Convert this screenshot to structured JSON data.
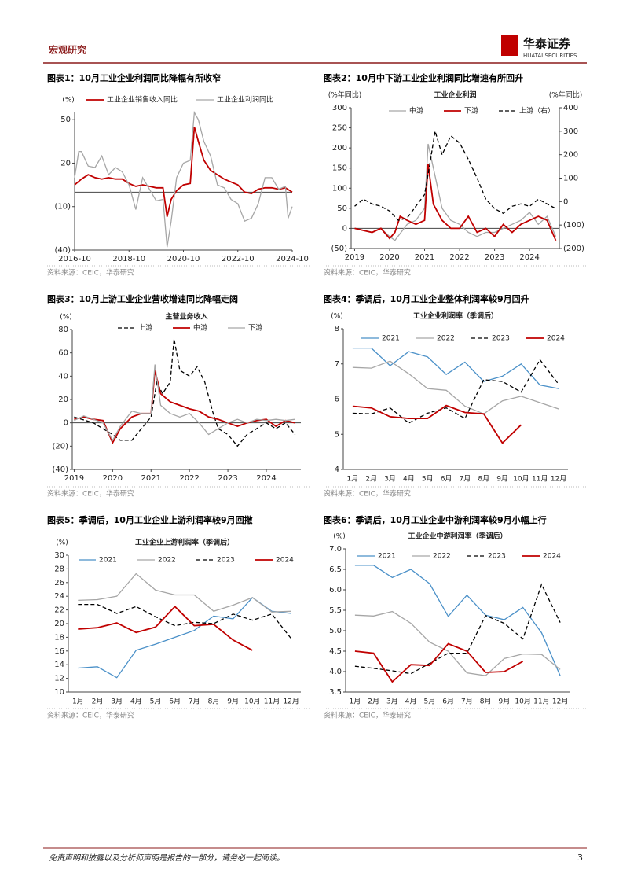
{
  "header": {
    "section": "宏观研究",
    "brand": "华泰证券",
    "brand_en": "HUATAI SECURITIES"
  },
  "chart_data": [
    {
      "type": "line",
      "title": "图表1：10月工业企业利润同比降幅有所收窄",
      "ylabel": "(%)",
      "source": "资料来源：CEIC，华泰研究",
      "xlim": [
        2016.75,
        2024.75
      ],
      "xticks": [
        {
          "value": 2016.75,
          "label": "2016-10"
        },
        {
          "value": 2018.75,
          "label": "2018-10"
        },
        {
          "value": 2020.75,
          "label": "2020-10"
        },
        {
          "value": 2022.75,
          "label": "2022-10"
        },
        {
          "value": 2024.75,
          "label": "2024-10"
        }
      ],
      "ylim": [
        -40,
        55
      ],
      "yticks": [
        {
          "value": -40,
          "label": "(40)"
        },
        {
          "value": -10,
          "label": "(10)"
        },
        20,
        50
      ],
      "zero_line": true,
      "grid": false,
      "series": [
        {
          "name": "工业企业销售收入同比",
          "color": "#c00000",
          "x": [
            2016.75,
            2017.0,
            2017.25,
            2017.5,
            2017.75,
            2018.0,
            2018.25,
            2018.5,
            2018.75,
            2019.0,
            2019.25,
            2019.5,
            2019.75,
            2020.0,
            2020.15,
            2020.3,
            2020.5,
            2020.75,
            2021.0,
            2021.15,
            2021.3,
            2021.5,
            2021.75,
            2022.0,
            2022.25,
            2022.5,
            2022.75,
            2023.0,
            2023.25,
            2023.5,
            2023.75,
            2024.0,
            2024.25,
            2024.5,
            2024.75
          ],
          "values": [
            5,
            9,
            12,
            10,
            9,
            10,
            9,
            9,
            6,
            4,
            5,
            4,
            3,
            3,
            -17,
            -5,
            1,
            5,
            6,
            45,
            35,
            22,
            15,
            12,
            9,
            7,
            5,
            0,
            -1,
            2,
            3,
            3,
            2,
            3,
            0
          ]
        },
        {
          "name": "工业企业利润同比",
          "color": "#a6a6a6",
          "x": [
            2016.75,
            2016.9,
            2017.0,
            2017.25,
            2017.5,
            2017.75,
            2018.0,
            2018.25,
            2018.5,
            2018.75,
            2019.0,
            2019.25,
            2019.5,
            2019.75,
            2020.0,
            2020.15,
            2020.3,
            2020.5,
            2020.75,
            2021.0,
            2021.15,
            2021.3,
            2021.5,
            2021.75,
            2022.0,
            2022.25,
            2022.5,
            2022.75,
            2023.0,
            2023.25,
            2023.5,
            2023.75,
            2024.0,
            2024.25,
            2024.5,
            2024.6,
            2024.75
          ],
          "values": [
            10,
            28,
            28,
            18,
            17,
            25,
            12,
            17,
            14,
            5,
            -12,
            10,
            2,
            -6,
            -5,
            -38,
            -20,
            10,
            20,
            22,
            55,
            50,
            35,
            25,
            5,
            3,
            -5,
            -8,
            -20,
            -18,
            -8,
            10,
            10,
            2,
            4,
            -18,
            -10
          ]
        }
      ]
    },
    {
      "type": "line",
      "title": "图表2：10月中下游工业企业利润同比增速有所回升",
      "subtitle": "工业企业利润",
      "ylabel": "(%年同比)",
      "y2label": "(%年同比)",
      "source": "资料来源：CEIC，华泰研究",
      "xlim": [
        2018.9,
        2024.85
      ],
      "xticks": [
        2019,
        2020,
        2021,
        2022,
        2023,
        2024
      ],
      "ylim": [
        -50,
        300
      ],
      "yticks": [
        {
          "value": -50,
          "label": "(50)"
        },
        0,
        50,
        100,
        150,
        200,
        250,
        300
      ],
      "y2lim": [
        -200,
        400
      ],
      "y2ticks": [
        {
          "value": -200,
          "label": "(200)"
        },
        {
          "value": -100,
          "label": "(100)"
        },
        0,
        100,
        200,
        300,
        400
      ],
      "zero_line": true,
      "grid": false,
      "series": [
        {
          "name": "中游",
          "color": "#a6a6a6",
          "x": [
            2019.0,
            2019.5,
            2019.75,
            2020.0,
            2020.15,
            2020.5,
            2020.75,
            2021.0,
            2021.1,
            2021.25,
            2021.5,
            2021.75,
            2022.0,
            2022.25,
            2022.5,
            2022.75,
            2023.0,
            2023.25,
            2023.5,
            2023.75,
            2024.0,
            2024.25,
            2024.5,
            2024.75
          ],
          "values": [
            0,
            -10,
            0,
            -20,
            -30,
            10,
            20,
            50,
            210,
            150,
            50,
            20,
            10,
            -10,
            -20,
            -10,
            -10,
            0,
            10,
            20,
            40,
            10,
            30,
            -20
          ]
        },
        {
          "name": "下游",
          "color": "#c00000",
          "x": [
            2019.0,
            2019.25,
            2019.5,
            2019.75,
            2020.0,
            2020.15,
            2020.3,
            2020.5,
            2020.75,
            2021.0,
            2021.1,
            2021.25,
            2021.5,
            2021.75,
            2022.0,
            2022.25,
            2022.5,
            2022.75,
            2023.0,
            2023.25,
            2023.5,
            2023.75,
            2024.0,
            2024.25,
            2024.5,
            2024.75
          ],
          "values": [
            0,
            -5,
            -10,
            0,
            -25,
            -10,
            30,
            20,
            10,
            20,
            160,
            60,
            20,
            0,
            0,
            30,
            -10,
            0,
            -20,
            10,
            -10,
            10,
            20,
            30,
            20,
            -30
          ]
        },
        {
          "name": "上游（右）",
          "color": "#000000",
          "dash": true,
          "axis": "y2",
          "x": [
            2019.0,
            2019.25,
            2019.5,
            2019.75,
            2020.0,
            2020.25,
            2020.5,
            2020.75,
            2021.0,
            2021.15,
            2021.3,
            2021.5,
            2021.75,
            2022.0,
            2022.25,
            2022.5,
            2022.75,
            2023.0,
            2023.25,
            2023.5,
            2023.75,
            2024.0,
            2024.25,
            2024.5,
            2024.75
          ],
          "values": [
            -20,
            10,
            -10,
            -20,
            -40,
            -80,
            -70,
            -20,
            30,
            160,
            300,
            200,
            280,
            250,
            180,
            100,
            10,
            -30,
            -50,
            -20,
            -10,
            -20,
            10,
            -10,
            -30
          ]
        }
      ]
    },
    {
      "type": "line",
      "title": "图表3：10月上游工业企业营收增速同比降幅走阔",
      "subtitle": "主营业务收入",
      "ylabel": "(%)",
      "source": "资料来源：CEIC，华泰研究",
      "xlim": [
        2018.95,
        2024.9
      ],
      "xticks": [
        2019,
        2020,
        2021,
        2022,
        2023,
        2024
      ],
      "ylim": [
        -40,
        80
      ],
      "yticks": [
        {
          "value": -40,
          "label": "(40)"
        },
        {
          "value": -20,
          "label": "(20)"
        },
        0,
        20,
        40,
        60,
        80
      ],
      "zero_line": true,
      "grid": false,
      "series": [
        {
          "name": "上游",
          "color": "#000000",
          "dash": true,
          "x": [
            2019.0,
            2019.5,
            2019.75,
            2020.0,
            2020.2,
            2020.5,
            2020.75,
            2021.0,
            2021.15,
            2021.3,
            2021.5,
            2021.6,
            2021.75,
            2022.0,
            2022.2,
            2022.4,
            2022.6,
            2022.75,
            2023.0,
            2023.25,
            2023.5,
            2023.75,
            2024.0,
            2024.25,
            2024.5,
            2024.75
          ],
          "values": [
            5,
            0,
            -5,
            -10,
            -15,
            -15,
            -5,
            5,
            35,
            25,
            35,
            72,
            45,
            40,
            48,
            35,
            10,
            -5,
            -10,
            -20,
            -10,
            -5,
            0,
            -5,
            0,
            -10
          ]
        },
        {
          "name": "中游",
          "color": "#c00000",
          "x": [
            2019.0,
            2019.25,
            2019.5,
            2019.75,
            2020.0,
            2020.2,
            2020.5,
            2020.75,
            2021.0,
            2021.1,
            2021.25,
            2021.5,
            2021.75,
            2022.0,
            2022.25,
            2022.5,
            2022.75,
            2023.0,
            2023.25,
            2023.5,
            2023.75,
            2024.0,
            2024.25,
            2024.5,
            2024.75
          ],
          "values": [
            3,
            5,
            3,
            2,
            -17,
            -5,
            5,
            8,
            8,
            45,
            25,
            18,
            15,
            12,
            10,
            5,
            3,
            0,
            -3,
            0,
            2,
            3,
            -3,
            2,
            0
          ]
        },
        {
          "name": "下游",
          "color": "#a6a6a6",
          "x": [
            2019.0,
            2019.25,
            2019.5,
            2019.75,
            2020.0,
            2020.2,
            2020.5,
            2020.75,
            2021.0,
            2021.1,
            2021.25,
            2021.5,
            2021.75,
            2022.0,
            2022.25,
            2022.5,
            2022.75,
            2023.0,
            2023.25,
            2023.5,
            2023.75,
            2024.0,
            2024.25,
            2024.5,
            2024.75
          ],
          "values": [
            2,
            6,
            3,
            0,
            -15,
            -3,
            10,
            8,
            8,
            50,
            15,
            8,
            5,
            8,
            0,
            -10,
            -5,
            0,
            3,
            0,
            3,
            2,
            3,
            2,
            3
          ]
        }
      ]
    },
    {
      "type": "line",
      "title": "图表4：季调后，10月工业企业整体利润率较9月回升",
      "subtitle": "工业企业利润率（季调后）",
      "ylabel": "(%)",
      "source": "资料来源：CEIC，华泰研究",
      "categories": [
        "1月",
        "2月",
        "3月",
        "4月",
        "5月",
        "6月",
        "7月",
        "8月",
        "9月",
        "10月",
        "11月",
        "12月"
      ],
      "ylim": [
        4,
        8
      ],
      "yticks": [
        4,
        5,
        6,
        7,
        8
      ],
      "grid": false,
      "series": [
        {
          "name": "2021",
          "color": "#4a90c8",
          "values": [
            7.45,
            7.45,
            6.95,
            7.35,
            7.2,
            6.7,
            7.05,
            6.5,
            6.65,
            7.0,
            6.4,
            6.3
          ]
        },
        {
          "name": "2022",
          "color": "#a6a6a6",
          "values": [
            6.9,
            6.88,
            7.08,
            6.72,
            6.3,
            6.25,
            5.8,
            5.58,
            5.95,
            6.08,
            5.9,
            5.72
          ]
        },
        {
          "name": "2023",
          "color": "#000000",
          "dash": true,
          "values": [
            5.6,
            5.58,
            5.75,
            5.32,
            5.6,
            5.75,
            5.45,
            6.55,
            6.5,
            6.2,
            7.12,
            6.42
          ]
        },
        {
          "name": "2024",
          "color": "#c00000",
          "values": [
            5.8,
            5.75,
            5.5,
            5.45,
            5.45,
            5.82,
            5.62,
            5.58,
            4.75,
            5.27,
            null,
            null
          ]
        }
      ]
    },
    {
      "type": "line",
      "title": "图表5：季调后，10月工业企业上游利润率较9月回撤",
      "subtitle": "工业企业上游利润率（季调后）",
      "ylabel": "(%)",
      "source": "资料来源：CEIC，华泰研究",
      "categories": [
        "1月",
        "2月",
        "3月",
        "4月",
        "5月",
        "6月",
        "7月",
        "8月",
        "9月",
        "10月",
        "11月",
        "12月"
      ],
      "ylim": [
        10,
        30
      ],
      "yticks": [
        10,
        12,
        14,
        16,
        18,
        20,
        22,
        24,
        26,
        28,
        30
      ],
      "grid": false,
      "series": [
        {
          "name": "2021",
          "color": "#4a90c8",
          "values": [
            13.5,
            13.7,
            12.1,
            16.1,
            17.0,
            18.0,
            19.0,
            21.1,
            20.7,
            23.8,
            21.8,
            21.5
          ]
        },
        {
          "name": "2022",
          "color": "#a6a6a6",
          "values": [
            23.4,
            23.5,
            24.0,
            27.3,
            24.9,
            24.2,
            24.2,
            21.8,
            22.7,
            23.8,
            21.7,
            21.8
          ]
        },
        {
          "name": "2023",
          "color": "#000000",
          "dash": true,
          "values": [
            22.8,
            22.8,
            21.5,
            22.5,
            21.0,
            19.7,
            20.2,
            20.0,
            21.4,
            20.5,
            21.4,
            17.8
          ]
        },
        {
          "name": "2024",
          "color": "#c00000",
          "values": [
            19.2,
            19.4,
            20.1,
            18.7,
            19.5,
            22.5,
            19.7,
            19.9,
            17.6,
            16.1,
            null,
            null
          ]
        }
      ]
    },
    {
      "type": "line",
      "title": "图表6：季调后，10月工业企业中游利润率较9月小幅上行",
      "subtitle": "工业企业中游利润率（季调后）",
      "ylabel": "(%)",
      "source": "资料来源：CEIC，华泰研究",
      "categories": [
        "1月",
        "2月",
        "3月",
        "4月",
        "5月",
        "6月",
        "7月",
        "8月",
        "9月",
        "10月",
        "11月",
        "12月"
      ],
      "ylim": [
        3.5,
        7.0
      ],
      "yticks": [
        3.5,
        {
          "value": 4,
          "label": "4.0"
        },
        4.5,
        {
          "value": 5,
          "label": "5.0"
        },
        5.5,
        {
          "value": 6,
          "label": "6.0"
        },
        6.5,
        {
          "value": 7,
          "label": "7.0"
        }
      ],
      "grid": false,
      "series": [
        {
          "name": "2021",
          "color": "#4a90c8",
          "values": [
            6.6,
            6.6,
            6.3,
            6.5,
            6.15,
            5.35,
            5.87,
            5.38,
            5.27,
            5.57,
            4.95,
            3.9
          ]
        },
        {
          "name": "2022",
          "color": "#a6a6a6",
          "values": [
            5.38,
            5.36,
            5.47,
            5.18,
            4.72,
            4.5,
            3.97,
            3.9,
            4.32,
            4.43,
            4.42,
            4.05
          ]
        },
        {
          "name": "2023",
          "color": "#000000",
          "dash": true,
          "values": [
            4.13,
            4.08,
            4.02,
            3.95,
            4.2,
            4.45,
            4.45,
            5.37,
            5.18,
            4.8,
            6.13,
            5.2
          ]
        },
        {
          "name": "2024",
          "color": "#c00000",
          "values": [
            4.5,
            4.45,
            3.75,
            4.17,
            4.15,
            4.68,
            4.5,
            3.98,
            4.0,
            4.25,
            null,
            null
          ]
        }
      ]
    }
  ],
  "footer": {
    "disclaimer": "免责声明和披露以及分析师声明是报告的一部分，请务必一起阅读。",
    "page": "3"
  }
}
